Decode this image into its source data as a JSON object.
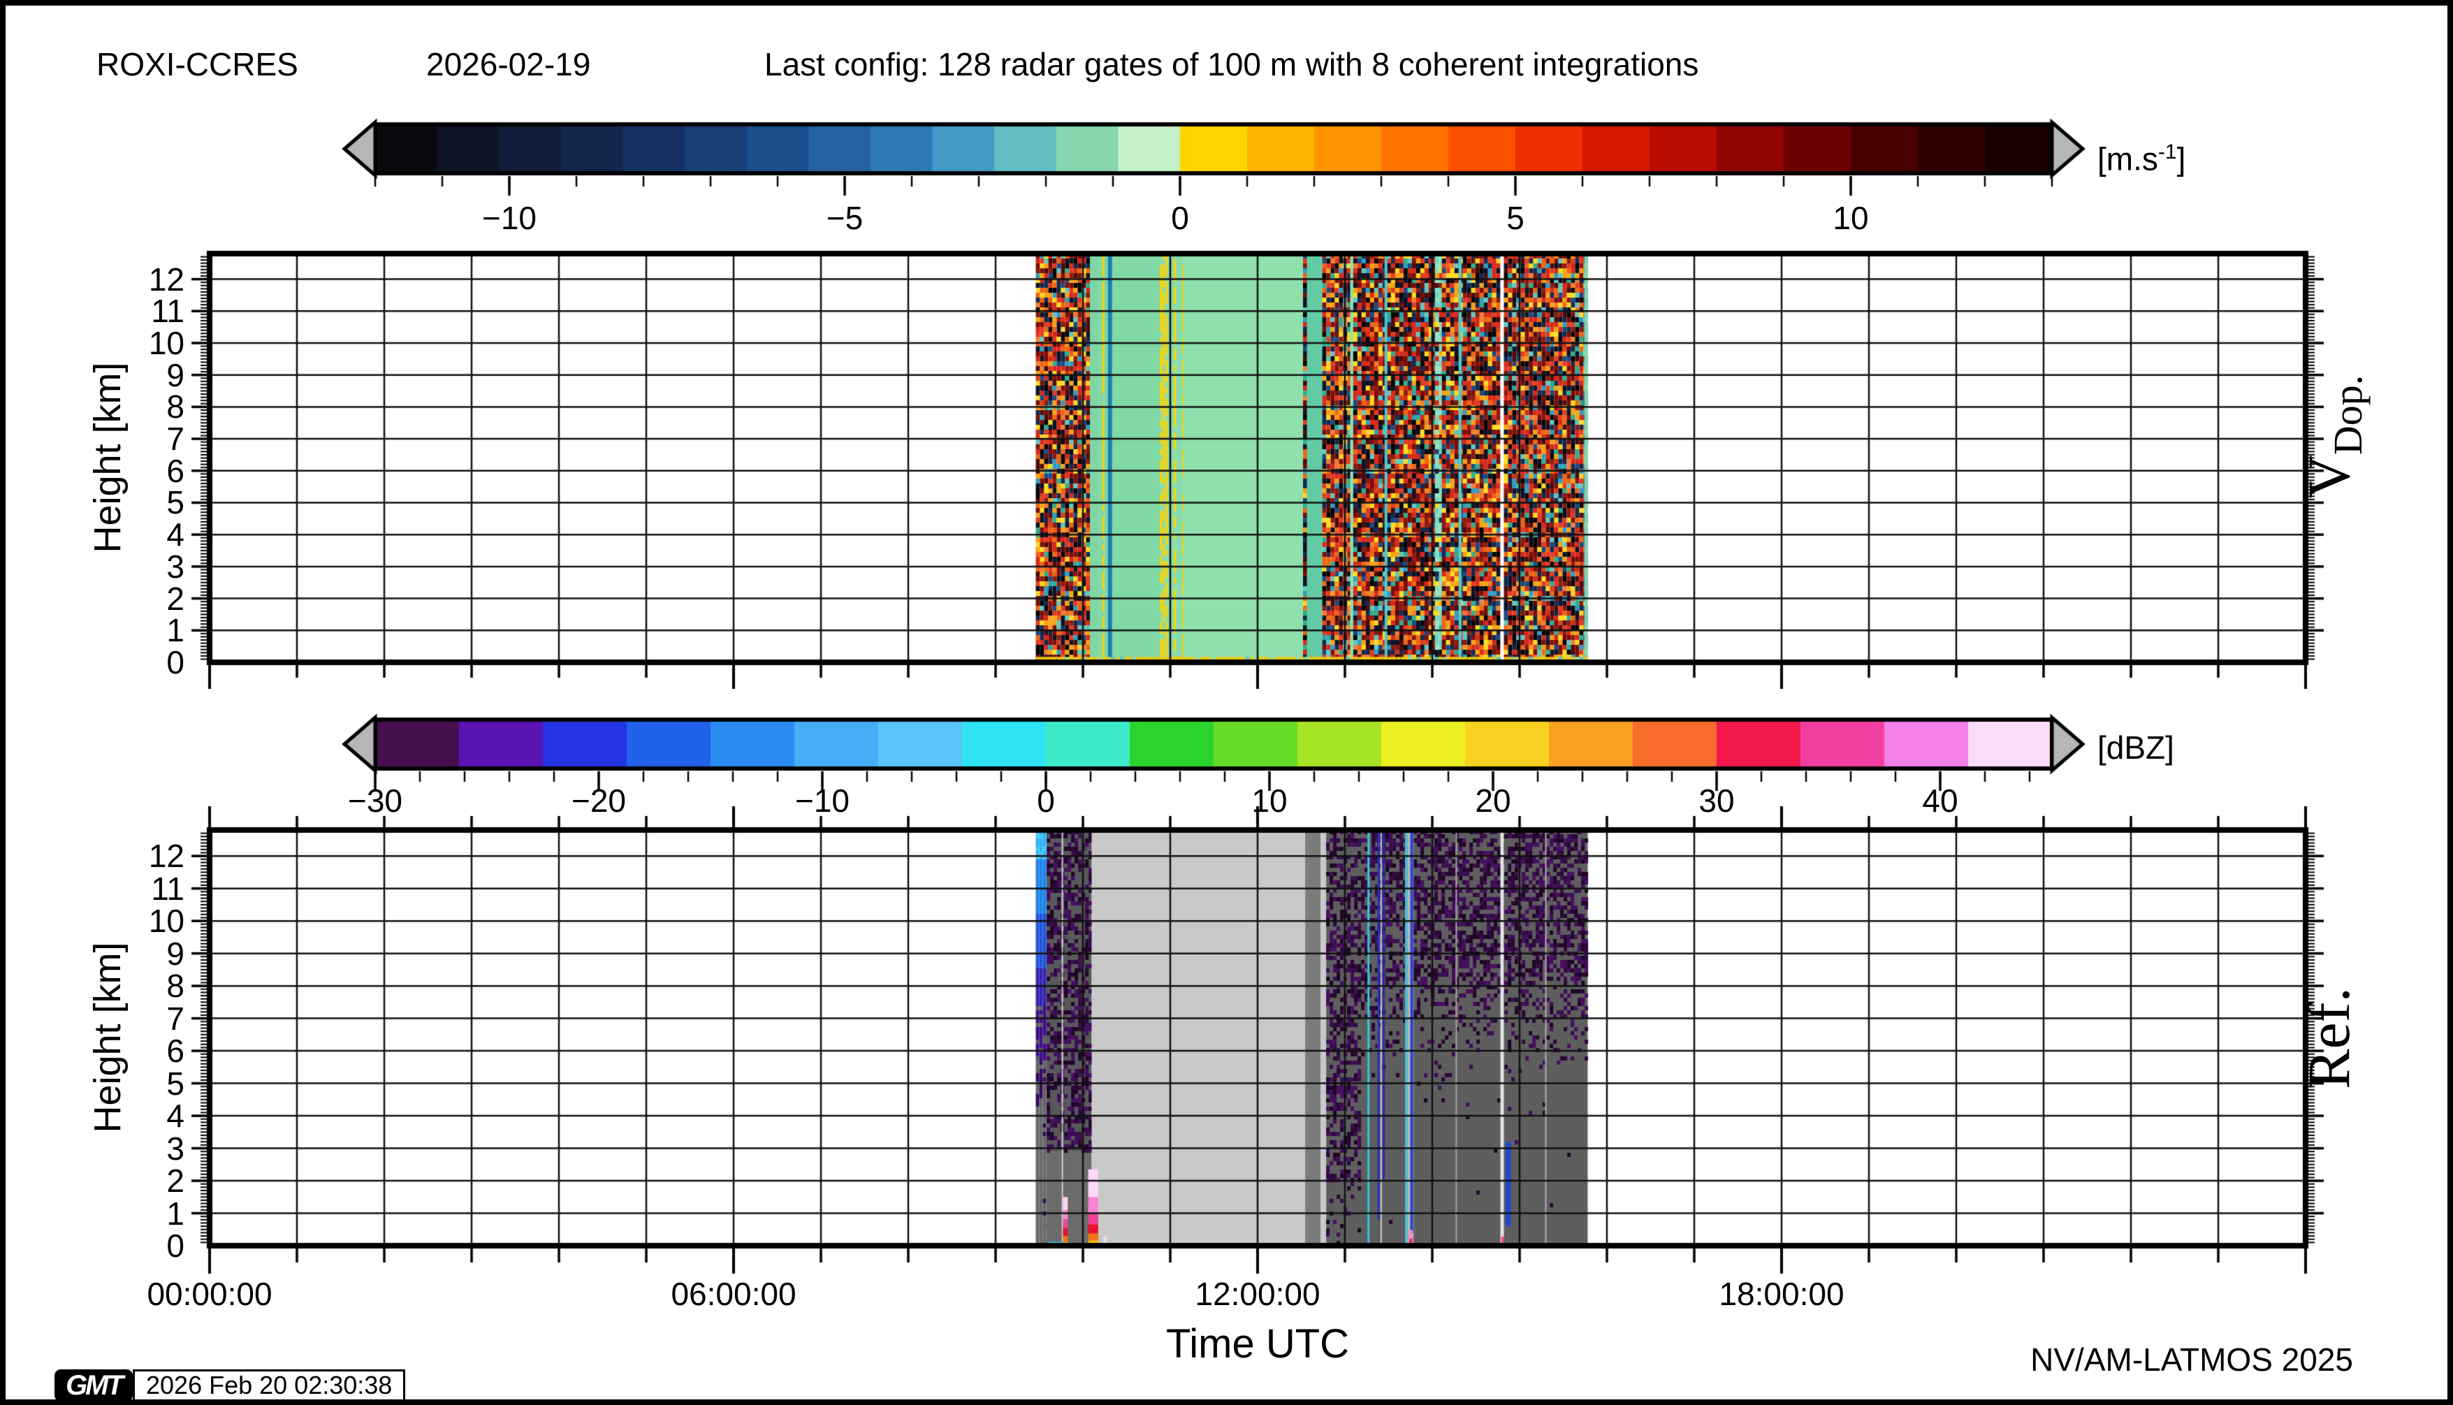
{
  "header": {
    "station": "ROXI-CCRES",
    "date": "2026-02-19",
    "config": "Last config: 128 radar gates of 100 m with 8 coherent integrations"
  },
  "footer": {
    "xlabel": "Time UTC",
    "credit": "NV/AM-LATMOS 2025",
    "gmt_logo": "GMT",
    "timestamp": "2026 Feb 20 02:30:38"
  },
  "axes": {
    "ylabel": "Height [km]",
    "y_tick_labels": [
      "0",
      "1",
      "2",
      "3",
      "4",
      "5",
      "6",
      "7",
      "8",
      "9",
      "10",
      "11",
      "12"
    ],
    "time_ticks": [
      {
        "h": 0,
        "label": "00:00:00"
      },
      {
        "h": 6,
        "label": "06:00:00"
      },
      {
        "h": 12,
        "label": "12:00:00"
      },
      {
        "h": 18,
        "label": "18:00:00"
      }
    ],
    "panel1_right_label": {
      "main": "V",
      "sub": "Dop."
    },
    "panel2_right_label": "Ref."
  },
  "colorbar_vdop": {
    "unit_pre": "[m.s",
    "unit_sup": "-1",
    "unit_post": "]",
    "range": [
      -12,
      13
    ],
    "minor_step": 1,
    "major_ticks": [
      {
        "v": -10,
        "label": "−10"
      },
      {
        "v": -5,
        "label": "−5"
      },
      {
        "v": 0,
        "label": "0"
      },
      {
        "v": 5,
        "label": "5"
      },
      {
        "v": 10,
        "label": "10"
      }
    ],
    "colors_neg": [
      "#0a0a10",
      "#0d1426",
      "#101d38",
      "#12264c",
      "#153162",
      "#183e78",
      "#1d4e8e",
      "#2462a2",
      "#2e7ab4",
      "#449ac6",
      "#63bcc0",
      "#86d6ae",
      "#c4f0c8"
    ],
    "colors_pos": [
      "#ffd400",
      "#ffb400",
      "#ff9400",
      "#ff7300",
      "#fb5100",
      "#ee3000",
      "#d81800",
      "#b80c00",
      "#920400",
      "#6c0200",
      "#4a0000",
      "#2e0000",
      "#180000"
    ]
  },
  "colorbar_ref": {
    "unit": "[dBZ]",
    "range": [
      -30,
      45
    ],
    "minor_step": 2,
    "major_ticks": [
      {
        "v": -30,
        "label": "−30"
      },
      {
        "v": -20,
        "label": "−20"
      },
      {
        "v": -10,
        "label": "−10"
      },
      {
        "v": 0,
        "label": "0"
      },
      {
        "v": 10,
        "label": "10"
      },
      {
        "v": 20,
        "label": "20"
      },
      {
        "v": 30,
        "label": "30"
      },
      {
        "v": 40,
        "label": "40"
      }
    ],
    "colors": [
      "#46104e",
      "#5a14b2",
      "#2434e4",
      "#2162ea",
      "#2b8cf2",
      "#45aef6",
      "#59c4fa",
      "#2ee4f4",
      "#3cecc8",
      "#2ad42c",
      "#66dc28",
      "#a8e426",
      "#ecf022",
      "#f8d020",
      "#f8a020",
      "#f86c2c",
      "#f2184c",
      "#f23ea0",
      "#f580e8",
      "#fbdcf8"
    ]
  },
  "chart_data": {
    "type": "heatmap",
    "title": "24-h radar time-height quicklook (Doppler velocity and reflectivity)",
    "x_axis": {
      "label": "Time UTC",
      "range_hours": [
        0,
        24
      ],
      "gridline_every_hours": 1,
      "tick_label_every_hours": 6
    },
    "y_axis": {
      "label": "Height [km]",
      "range_km": [
        0,
        12.8
      ],
      "gridline_every_km": 1
    },
    "data_time_extent_hours": [
      9.46,
      15.78
    ],
    "panels": [
      {
        "id": "vdop",
        "right_label": "V Dop.",
        "quantity": "Doppler velocity",
        "unit": "m.s-1",
        "bands": [
          {
            "t0": 9.46,
            "t1": 10.08,
            "type": "noise"
          },
          {
            "t0": 10.08,
            "t1": 10.19,
            "type": "solid",
            "color": "#7fd6a3"
          },
          {
            "t0": 10.19,
            "t1": 10.245,
            "type": "streaks",
            "bg": "#7fd6a3",
            "fg": "#ffd400",
            "density": 0.75
          },
          {
            "t0": 10.245,
            "t1": 10.285,
            "type": "solid",
            "color": "#7fd6a3"
          },
          {
            "t0": 10.285,
            "t1": 10.335,
            "type": "solid",
            "color": "#187fae"
          },
          {
            "t0": 10.335,
            "t1": 10.88,
            "type": "solid",
            "color": "#80d8a4"
          },
          {
            "t0": 10.88,
            "t1": 11.15,
            "type": "streaks",
            "bg": "#89dcab",
            "fg": "#ffd400",
            "density": 0.45
          },
          {
            "t0": 11.15,
            "t1": 12.52,
            "type": "solid",
            "color": "#8fe0ad"
          },
          {
            "t0": 12.52,
            "t1": 12.565,
            "type": "noise"
          },
          {
            "t0": 12.565,
            "t1": 12.74,
            "type": "solid",
            "color": "#63cba4"
          },
          {
            "t0": 12.74,
            "t1": 13.06,
            "type": "noise"
          },
          {
            "t0": 13.06,
            "t1": 13.095,
            "type": "solid",
            "color": "#8fe0ad"
          },
          {
            "t0": 13.095,
            "t1": 14.03,
            "type": "noise"
          },
          {
            "t0": 14.03,
            "t1": 14.11,
            "type": "noisemix",
            "base": "#85dec2",
            "density": 0.35
          },
          {
            "t0": 14.11,
            "t1": 14.78,
            "type": "noise"
          },
          {
            "t0": 14.78,
            "t1": 14.82,
            "type": "solid",
            "color": "#ffffff"
          },
          {
            "t0": 14.82,
            "t1": 15.74,
            "type": "noise"
          },
          {
            "t0": 15.74,
            "t1": 15.78,
            "type": "solid",
            "color": "#7ad8b8"
          }
        ],
        "overlay_lines": [
          {
            "t": 13.47,
            "w": 4,
            "color": "#4ec8d0",
            "k0": 0,
            "k1": 12.8
          },
          {
            "t": 14.32,
            "w": 4,
            "color": "#55ccc8",
            "k0": 0,
            "k1": 12.8
          }
        ],
        "bottom_strip": {
          "segments": [
            [
              9.46,
              14.78
            ],
            [
              14.82,
              15.74
            ]
          ],
          "km_top": 0.17,
          "color": "#f0c818"
        }
      },
      {
        "id": "ref",
        "right_label": "Ref.",
        "quantity": "Radar reflectivity",
        "unit": "dBZ",
        "bands": [
          {
            "t0": 9.46,
            "t1": 9.585,
            "type": "bluecol"
          },
          {
            "t0": 9.585,
            "t1": 10.1,
            "type": "purple_left"
          },
          {
            "t0": 10.1,
            "t1": 12.545,
            "type": "solid",
            "color": "#c9c9c9"
          },
          {
            "t0": 12.545,
            "t1": 12.72,
            "type": "solid",
            "color": "#7b7b7b"
          },
          {
            "t0": 12.72,
            "t1": 12.785,
            "type": "solid",
            "color": "#c9c9c9"
          },
          {
            "t0": 12.785,
            "t1": 15.78,
            "type": "purple_right"
          }
        ],
        "overlay_lines": [
          {
            "t": 9.765,
            "w": 2,
            "color": "#d0d0d0",
            "k0": 0,
            "k1": 12.8
          },
          {
            "t": 13.27,
            "w": 3,
            "color": "#38c8e0",
            "k0": 0,
            "k1": 12.8
          },
          {
            "t": 13.385,
            "w": 3,
            "color": "#2430c4",
            "k0": 0.8,
            "k1": 12.8
          },
          {
            "t": 13.415,
            "w": 2,
            "color": "#cccccc",
            "k0": 0,
            "k1": 12.8
          },
          {
            "t": 13.445,
            "w": 3,
            "color": "#2c2ca8",
            "k0": 2,
            "k1": 12.8
          },
          {
            "t": 13.7,
            "w": 3,
            "color": "#38c8e0",
            "k0": 0,
            "k1": 12.8
          },
          {
            "t": 13.75,
            "w": 9,
            "color": "#b4b8bc",
            "k0": 0,
            "k1": 12.8
          },
          {
            "t": 13.765,
            "w": 4,
            "color": "#2346cc",
            "k0": 0.4,
            "k1": 12.8
          },
          {
            "t": 14.275,
            "w": 2,
            "color": "#a6a6a6",
            "k0": 0,
            "k1": 12.8
          },
          {
            "t": 14.8,
            "w": 5,
            "color": "#e2e2e2",
            "k0": 0,
            "k1": 12.8
          },
          {
            "t": 14.87,
            "w": 8,
            "color": "#2248c8",
            "k0": 0.6,
            "k1": 3.2
          },
          {
            "t": 15.3,
            "w": 2,
            "color": "#b2b2b2",
            "k0": 0,
            "k1": 12.8
          }
        ],
        "precip_columns": [
          {
            "t0": 9.772,
            "t1": 9.826,
            "stack": [
              [
                0,
                0.12,
                "#f2c400"
              ],
              [
                0.12,
                0.3,
                "#f07418"
              ],
              [
                0.3,
                0.55,
                "#ea1030"
              ],
              [
                0.55,
                0.82,
                "#f04898"
              ],
              [
                0.82,
                1.1,
                "#f78ad8"
              ],
              [
                1.1,
                1.5,
                "#fbd4f2"
              ]
            ]
          },
          {
            "t0": 10.06,
            "t1": 10.175,
            "stack": [
              [
                0,
                0.16,
                "#f2c400"
              ],
              [
                0.16,
                0.38,
                "#f07418"
              ],
              [
                0.38,
                0.66,
                "#ea1030"
              ],
              [
                0.66,
                0.98,
                "#f04098"
              ],
              [
                0.98,
                1.5,
                "#f782d2"
              ],
              [
                1.5,
                2.35,
                "#fcdaf6"
              ]
            ]
          },
          {
            "t0": 10.235,
            "t1": 10.27,
            "stack": [
              [
                0.08,
                0.28,
                "#fbd4f2"
              ]
            ]
          },
          {
            "t0": 13.735,
            "t1": 13.775,
            "stack": [
              [
                0,
                0.22,
                "#ee3060"
              ],
              [
                0.22,
                0.48,
                "#f78ac8"
              ]
            ]
          },
          {
            "t0": 14.79,
            "t1": 14.825,
            "stack": [
              [
                0,
                0.28,
                "#f04898"
              ]
            ]
          }
        ],
        "cyan_strip": {
          "t0": 9.6,
          "t1": 9.77,
          "km_top": 0.12,
          "color": "#28c8e8"
        }
      }
    ]
  }
}
